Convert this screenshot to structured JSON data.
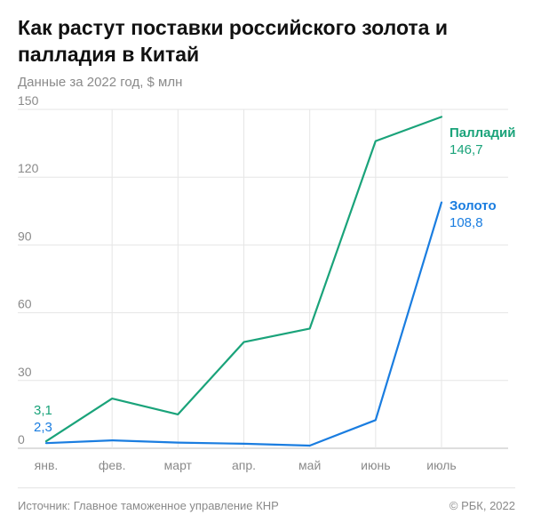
{
  "title": "Как растут поставки российского золота и палладия в Китай",
  "subtitle": "Данные за 2022 год, $ млн",
  "source": "Источник: Главное таможенное управление КНР",
  "credit": "© РБК, 2022",
  "chart_data": {
    "type": "line",
    "categories": [
      "янв.",
      "фев.",
      "март",
      "апр.",
      "май",
      "июнь",
      "июль"
    ],
    "ylim": [
      0,
      150
    ],
    "yticks": [
      0,
      30,
      60,
      90,
      120,
      150
    ],
    "grid": true,
    "series": [
      {
        "name": "Палладий",
        "color": "#1aa37a",
        "values": [
          3.1,
          22,
          15,
          47,
          53,
          136,
          146.7
        ],
        "start_label": "3,1",
        "end_label": "146,7"
      },
      {
        "name": "Золото",
        "color": "#1a7de0",
        "values": [
          2.3,
          3.5,
          2.5,
          2,
          1.2,
          12.5,
          108.8
        ],
        "start_label": "2,3",
        "end_label": "108,8"
      }
    ]
  }
}
